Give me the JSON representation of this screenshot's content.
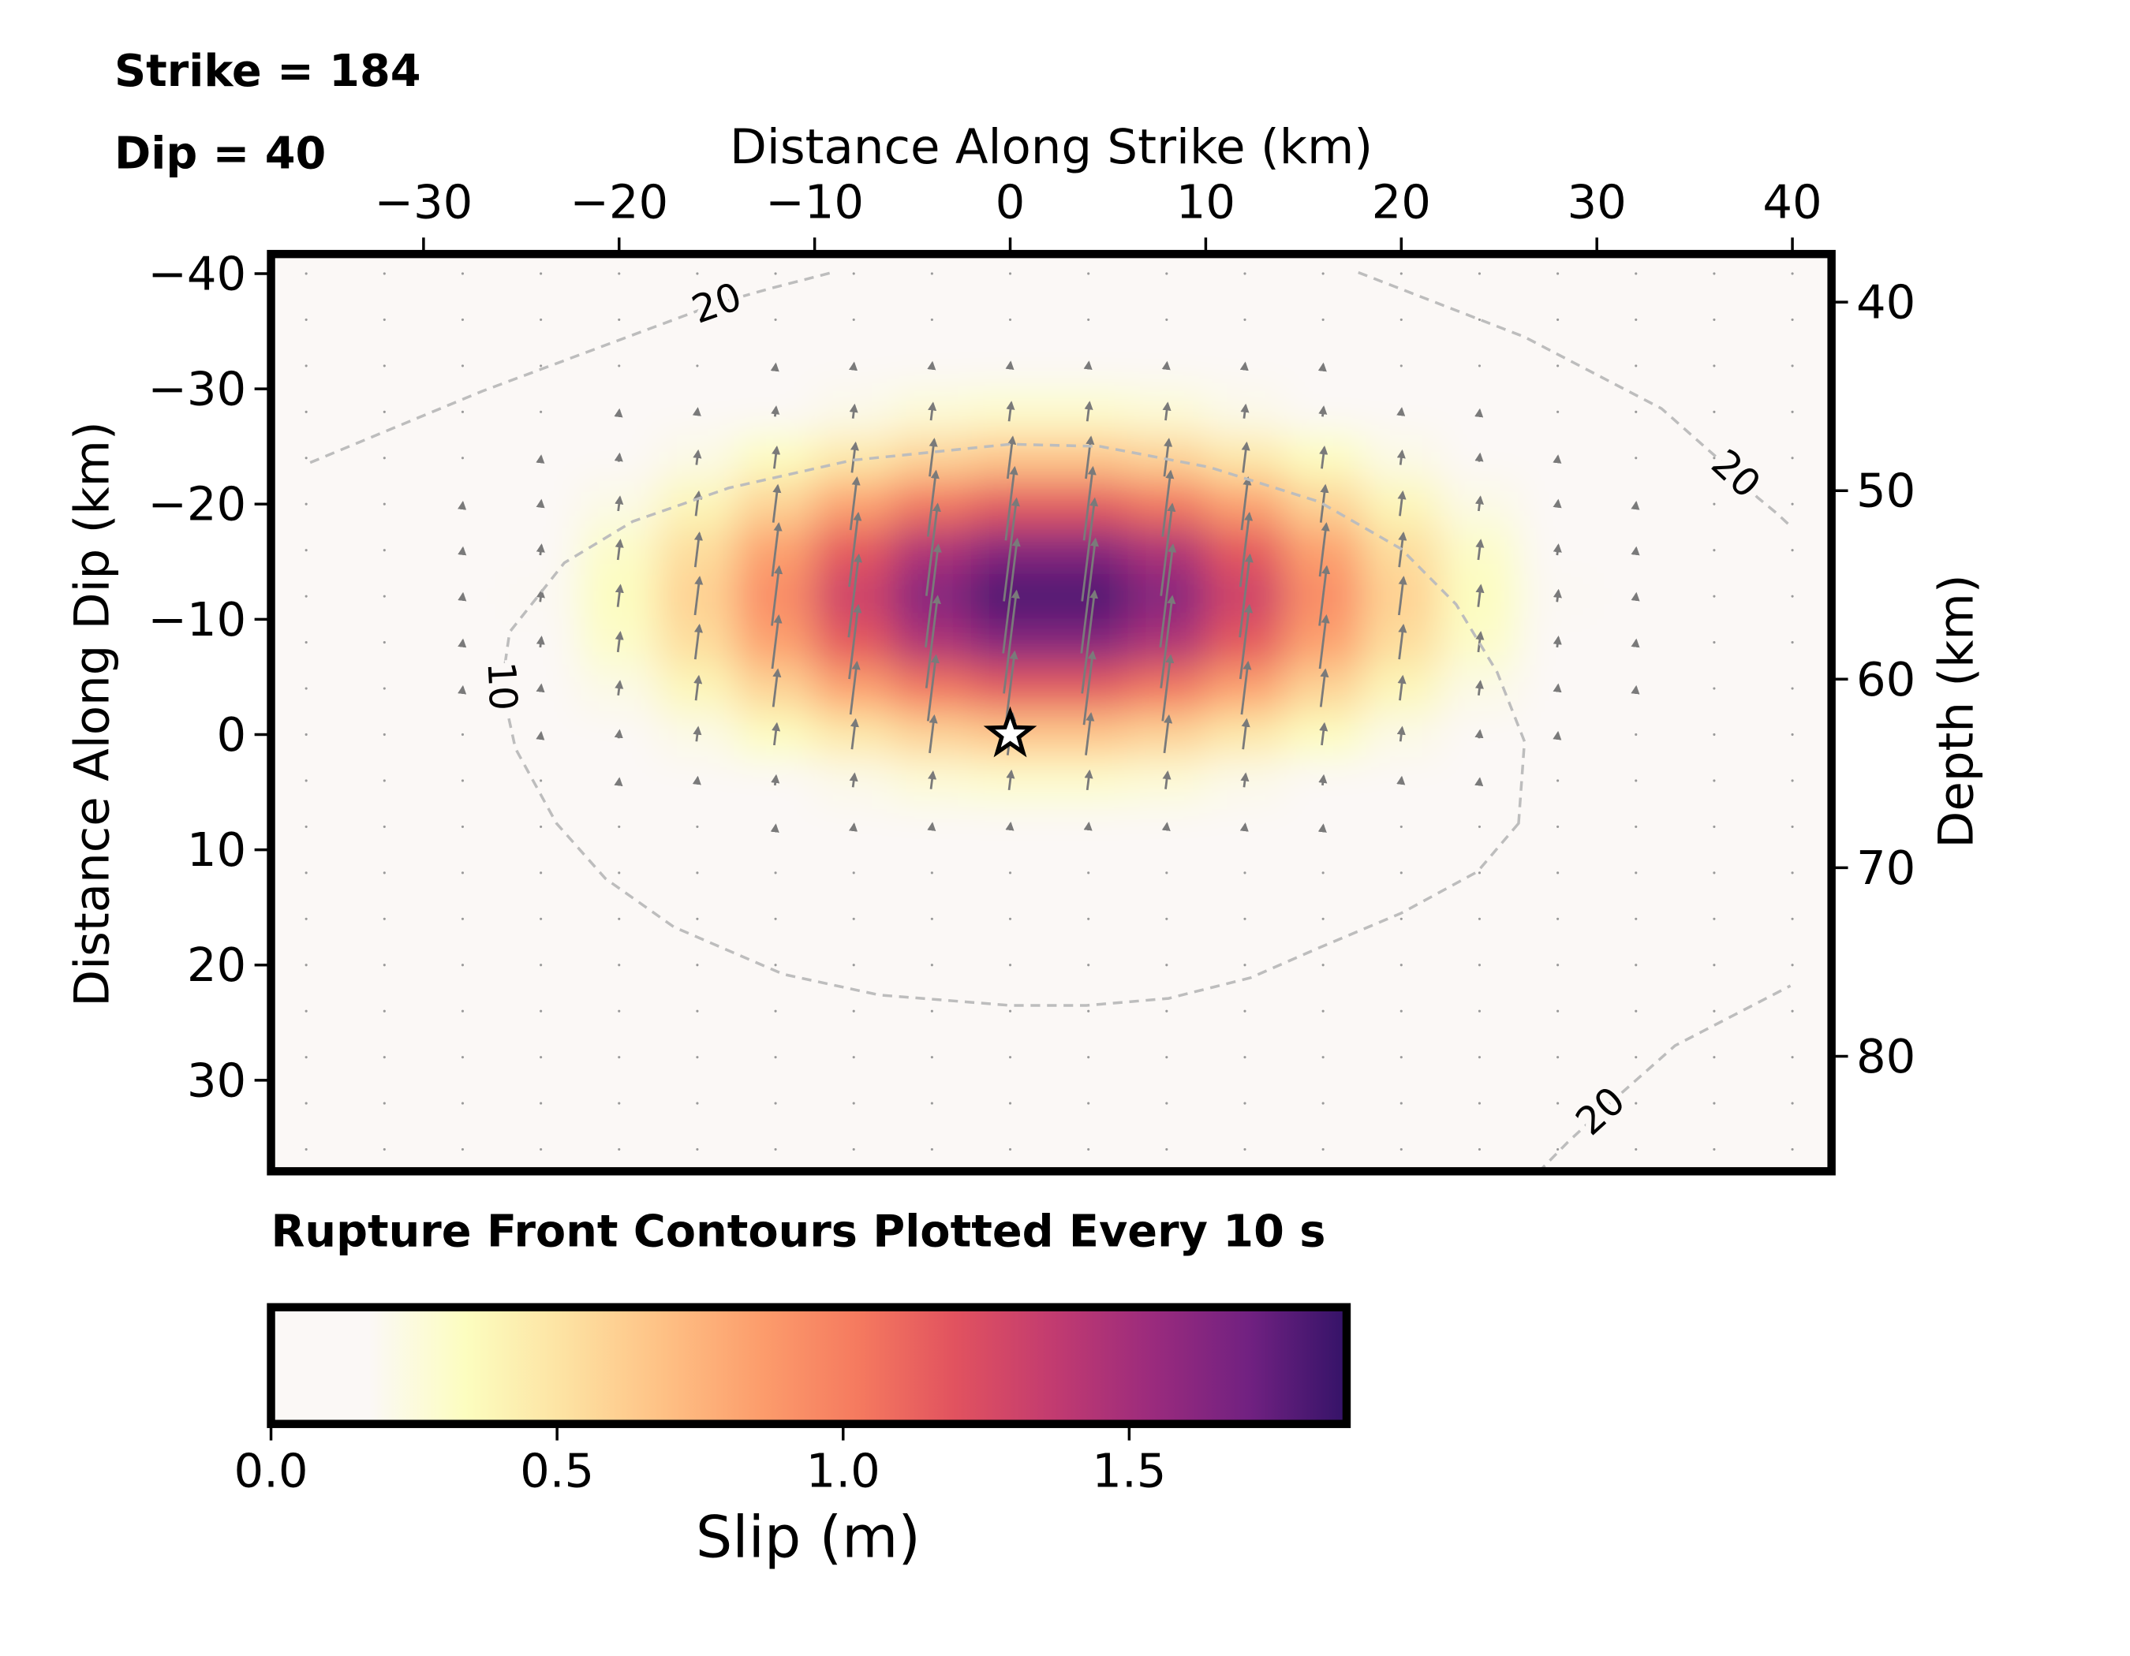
{
  "chart_data": {
    "type": "heatmap",
    "strike_text": "Strike = 184",
    "dip_text": "Dip = 40",
    "xlabel": "Distance Along Strike (km)",
    "ylabel": "Distance Along Dip (km)",
    "y2label": "Depth (km)",
    "title": "Rupture Front Contours Plotted Every 10 s",
    "colorbar_label": "Slip (m)",
    "xlim": [
      -37.8,
      42
    ],
    "ylim": [
      37.9,
      -41.7
    ],
    "y2lim": [
      86.1,
      37.45
    ],
    "zlim": [
      0,
      1.88
    ],
    "xticks": [
      {
        "value": -30,
        "label": "−30"
      },
      {
        "value": -20,
        "label": "−20"
      },
      {
        "value": -10,
        "label": "−10"
      },
      0,
      10,
      20,
      30,
      40
    ],
    "yticks": [
      {
        "value": -40,
        "label": "−40"
      },
      {
        "value": -30,
        "label": "−30"
      },
      {
        "value": -20,
        "label": "−20"
      },
      {
        "value": -10,
        "label": "−10"
      },
      0,
      10,
      20,
      30
    ],
    "y2ticks": [
      40,
      50,
      60,
      70,
      80
    ],
    "zticks": [
      {
        "value": 0,
        "label": "0.0"
      },
      0.5,
      {
        "value": 1,
        "label": "1.0"
      },
      1.5
    ],
    "colormap": [
      "#fbf8f6",
      "#fbf8f6",
      "#fcfdbf",
      "#fde2a2",
      "#fec185",
      "#fc9d6c",
      "#f57a5f",
      "#e1525f",
      "#c23b70",
      "#9b2b7d",
      "#712181",
      "#341368"
    ],
    "rake": 83,
    "x": [
      -36,
      -32,
      -28,
      -24,
      -20,
      -16,
      -12,
      -8,
      -4,
      0,
      4,
      8,
      12,
      16,
      20,
      24,
      28,
      32,
      36,
      40
    ],
    "y": [
      -40,
      -36,
      -32,
      -28,
      -24,
      -20,
      -16,
      -12,
      -8,
      -4,
      0,
      4,
      8,
      12,
      16,
      20,
      24,
      28,
      32,
      36
    ],
    "z": [
      [
        0,
        0,
        0,
        0,
        0,
        0,
        0,
        0,
        0,
        0,
        0,
        0,
        0,
        0,
        0,
        0,
        0,
        0,
        0,
        0
      ],
      [
        0,
        0,
        0,
        0,
        0,
        0,
        0,
        0,
        0,
        0,
        0,
        0,
        0,
        0,
        0,
        0,
        0,
        0,
        0,
        0
      ],
      [
        0,
        0,
        0,
        0,
        0,
        0,
        0.05,
        0.08,
        0.1,
        0.11,
        0.11,
        0.1,
        0.08,
        0.05,
        0,
        0,
        0,
        0,
        0,
        0
      ],
      [
        0,
        0,
        0,
        0,
        0.06,
        0.1,
        0.15,
        0.21,
        0.27,
        0.3,
        0.3,
        0.27,
        0.21,
        0.15,
        0.1,
        0.06,
        0,
        0,
        0,
        0
      ],
      [
        0,
        0,
        0,
        0.06,
        0.12,
        0.22,
        0.34,
        0.47,
        0.59,
        0.66,
        0.66,
        0.59,
        0.47,
        0.34,
        0.22,
        0.12,
        0.06,
        0,
        0,
        0
      ],
      [
        0,
        0,
        0.05,
        0.11,
        0.22,
        0.38,
        0.59,
        0.83,
        1.04,
        1.16,
        1.16,
        1.04,
        0.83,
        0.59,
        0.38,
        0.22,
        0.11,
        0.05,
        0,
        0
      ],
      [
        0,
        0,
        0.07,
        0.16,
        0.31,
        0.54,
        0.84,
        1.17,
        1.46,
        1.63,
        1.63,
        1.46,
        1.17,
        0.84,
        0.54,
        0.31,
        0.16,
        0.07,
        0,
        0
      ],
      [
        0,
        0,
        0.08,
        0.18,
        0.34,
        0.6,
        0.94,
        1.31,
        1.63,
        1.82,
        1.82,
        1.63,
        1.31,
        0.94,
        0.6,
        0.34,
        0.18,
        0.08,
        0,
        0
      ],
      [
        0,
        0,
        0.07,
        0.16,
        0.31,
        0.54,
        0.84,
        1.17,
        1.46,
        1.63,
        1.63,
        1.46,
        1.17,
        0.84,
        0.54,
        0.31,
        0.16,
        0.07,
        0,
        0
      ],
      [
        0,
        0,
        0.05,
        0.11,
        0.22,
        0.38,
        0.59,
        0.83,
        1.04,
        1.16,
        1.16,
        1.04,
        0.83,
        0.59,
        0.38,
        0.22,
        0.11,
        0.05,
        0,
        0
      ],
      [
        0,
        0,
        0,
        0.06,
        0.12,
        0.22,
        0.34,
        0.47,
        0.59,
        0.66,
        0.66,
        0.59,
        0.47,
        0.34,
        0.22,
        0.12,
        0.06,
        0,
        0,
        0
      ],
      [
        0,
        0,
        0,
        0,
        0.06,
        0.1,
        0.15,
        0.21,
        0.27,
        0.3,
        0.3,
        0.27,
        0.21,
        0.15,
        0.1,
        0.06,
        0,
        0,
        0,
        0
      ],
      [
        0,
        0,
        0,
        0,
        0,
        0,
        0.05,
        0.08,
        0.1,
        0.11,
        0.11,
        0.1,
        0.08,
        0.05,
        0,
        0,
        0,
        0,
        0,
        0
      ],
      [
        0,
        0,
        0,
        0,
        0,
        0,
        0,
        0,
        0,
        0,
        0,
        0,
        0,
        0,
        0,
        0,
        0,
        0,
        0,
        0
      ],
      [
        0,
        0,
        0,
        0,
        0,
        0,
        0,
        0,
        0,
        0,
        0,
        0,
        0,
        0,
        0,
        0,
        0,
        0,
        0,
        0
      ],
      [
        0,
        0,
        0,
        0,
        0,
        0,
        0,
        0,
        0,
        0,
        0,
        0,
        0,
        0,
        0,
        0,
        0,
        0,
        0,
        0
      ],
      [
        0,
        0,
        0,
        0,
        0,
        0,
        0,
        0,
        0,
        0,
        0,
        0,
        0,
        0,
        0,
        0,
        0,
        0,
        0,
        0
      ],
      [
        0,
        0,
        0,
        0,
        0,
        0,
        0,
        0,
        0,
        0,
        0,
        0,
        0,
        0,
        0,
        0,
        0,
        0,
        0,
        0
      ],
      [
        0,
        0,
        0,
        0,
        0,
        0,
        0,
        0,
        0,
        0,
        0,
        0,
        0,
        0,
        0,
        0,
        0,
        0,
        0,
        0
      ],
      [
        0,
        0,
        0,
        0,
        0,
        0,
        0,
        0,
        0,
        0,
        0,
        0,
        0,
        0,
        0,
        0,
        0,
        0,
        0,
        0
      ]
    ],
    "hypocenter": {
      "x": 0,
      "y": 0
    },
    "contours": [
      {
        "level": 10,
        "closed": true,
        "x": [
          26,
          23.9,
          20,
          15.8,
          12.3,
          8.1,
          3.9,
          0,
          -6.7,
          -11.6,
          -17.2,
          -20.7,
          -23.2,
          -25.3,
          -26,
          -25.6,
          -22.8,
          -19.3,
          -14.4,
          -8.1,
          0,
          4.6,
          10.2,
          15.8,
          20,
          22.8,
          24.9,
          26.3
        ],
        "y": [
          7.7,
          11.9,
          15.5,
          18.5,
          21.1,
          22.9,
          23.5,
          23.5,
          22.6,
          20.8,
          16.7,
          12.5,
          7.7,
          1.2,
          -4.2,
          -8.9,
          -14.9,
          -18.5,
          -21.4,
          -23.8,
          -25.2,
          -25,
          -23.2,
          -20.2,
          -16.1,
          -11.3,
          -5.4,
          0.6
        ]
      },
      {
        "level": 20,
        "closed": false,
        "x": [
          -35.8,
          -27,
          -15,
          -12.3,
          -9.1
        ],
        "y": [
          -23.6,
          -29.8,
          -37.4,
          -38.7,
          -40.1
        ]
      },
      {
        "level": 20,
        "closed": false,
        "x": [
          17.8,
          26.3,
          33.3,
          37.1,
          38.2,
          39.2,
          39.9
        ],
        "y": [
          -40.1,
          -34.5,
          -28.3,
          -22.6,
          -20.6,
          -19.2,
          -18.1
        ]
      },
      {
        "level": 20,
        "closed": false,
        "x": [
          27,
          28.5,
          30.2,
          34,
          39.9
        ],
        "y": [
          38,
          35.4,
          32.7,
          27,
          21.8
        ]
      }
    ]
  }
}
